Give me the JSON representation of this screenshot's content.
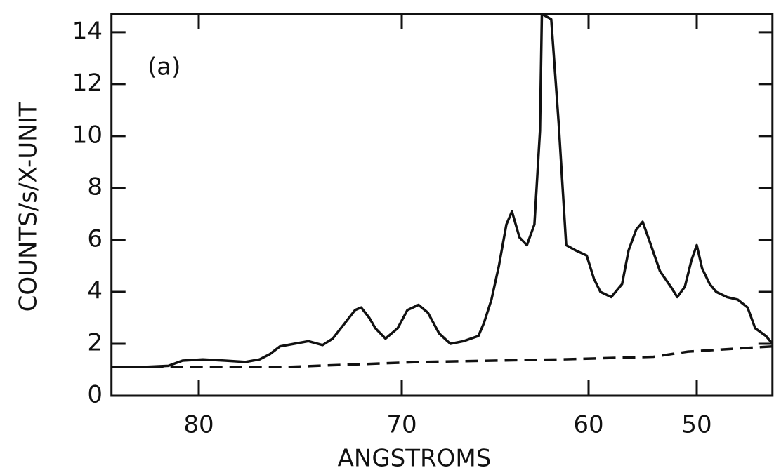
{
  "chart_data": {
    "type": "line",
    "annotation": "(a)",
    "x_label": "ANGSTROMS",
    "y_label": "COUNTS/s/X-UNIT",
    "x": [
      84.3,
      82.9,
      81.5,
      80.8,
      79.8,
      78.7,
      77.7,
      77.0,
      76.5,
      76.0,
      75.3,
      74.6,
      73.9,
      73.4,
      72.8,
      72.3,
      72.0,
      71.6,
      71.3,
      70.8,
      70.2,
      69.7,
      69.1,
      68.6,
      68.0,
      67.4,
      66.7,
      65.9,
      65.6,
      65.2,
      64.8,
      64.4,
      64.1,
      63.7,
      63.3,
      62.9,
      62.6,
      62.5,
      62.0,
      61.6,
      61.2,
      60.7,
      60.1,
      59.5,
      58.9,
      57.9,
      56.9,
      56.3,
      55.6,
      55.0,
      54.4,
      53.4,
      52.4,
      51.8,
      51.1,
      50.5,
      50.0,
      49.5,
      48.8,
      48.2,
      47.2,
      46.2,
      45.3,
      44.6,
      43.6,
      43.0
    ],
    "series": [
      {
        "color": "#111111",
        "style": "solid",
        "values": [
          1.1,
          1.1,
          1.15,
          1.35,
          1.4,
          1.35,
          1.3,
          1.4,
          1.6,
          1.9,
          2.0,
          2.1,
          1.95,
          2.2,
          2.8,
          3.3,
          3.4,
          3.0,
          2.6,
          2.2,
          2.6,
          3.3,
          3.5,
          3.2,
          2.4,
          2.0,
          2.1,
          2.3,
          2.8,
          3.7,
          5.0,
          6.6,
          7.1,
          6.1,
          5.8,
          6.6,
          10.2,
          14.7,
          14.5,
          10.5,
          5.8,
          5.6,
          5.4,
          4.5,
          4.0,
          3.8,
          4.3,
          5.6,
          6.4,
          6.7,
          6.0,
          4.8,
          4.2,
          3.8,
          4.2,
          5.2,
          5.8,
          4.9,
          4.3,
          4.0,
          3.8,
          3.7,
          3.4,
          2.6,
          2.3,
          2.0
        ]
      },
      {
        "color": "#111111",
        "style": "dashed",
        "x": [
          84.3,
          76.0,
          69.0,
          61.4,
          54.0,
          50.8,
          43.0
        ],
        "values": [
          1.1,
          1.1,
          1.3,
          1.4,
          1.5,
          1.7,
          1.9
        ]
      }
    ],
    "xlim": [
      84.3,
      43.0
    ],
    "xticks": [
      80,
      70,
      60,
      50
    ],
    "ylim": [
      0,
      14.7
    ],
    "yticks": [
      0,
      2,
      4,
      6,
      8,
      10,
      12,
      14
    ],
    "grid": false
  }
}
